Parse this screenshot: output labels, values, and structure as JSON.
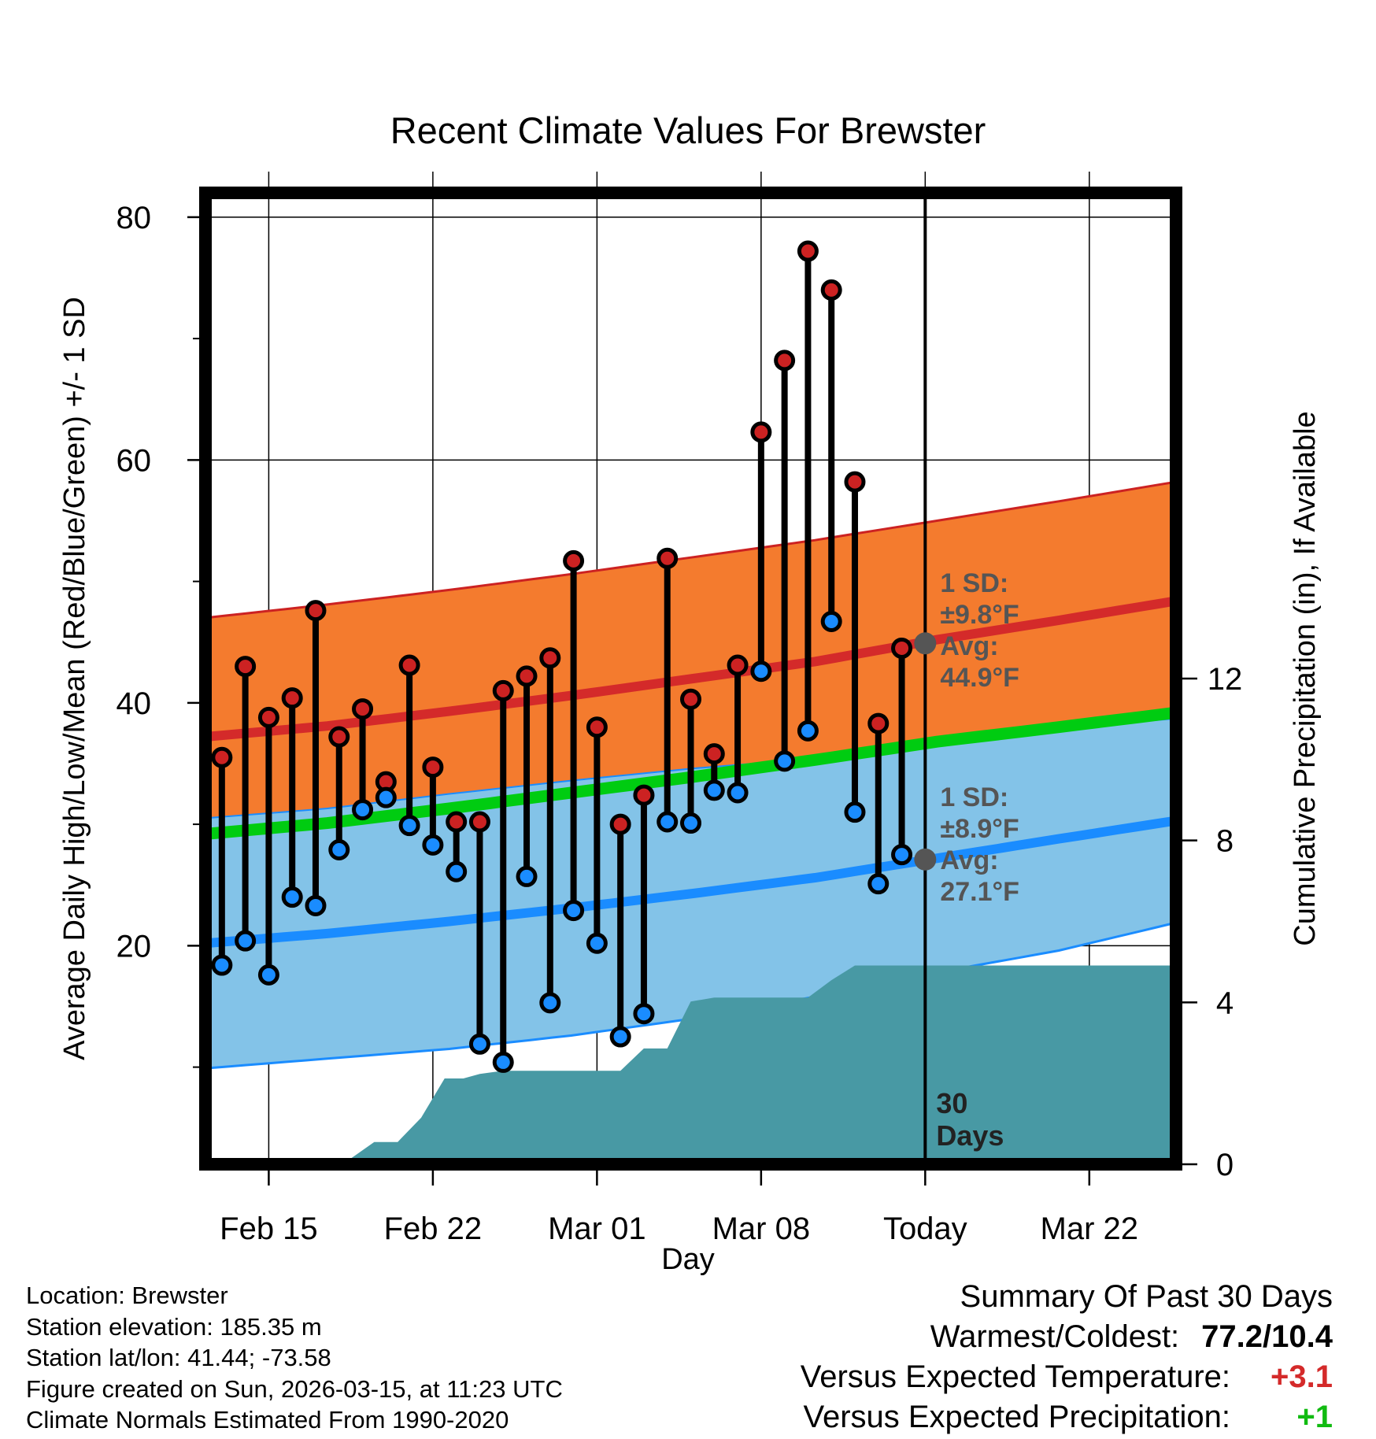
{
  "colors": {
    "high_band": "#f47b2e",
    "high_band_edge": "#cc2222",
    "high_avg": "#d42a2a",
    "low_band": "#83c3e8",
    "low_band_edge": "#1a8cff",
    "low_avg": "#1a8cff",
    "mean_line": "#00cc11",
    "precip": "#4899a4",
    "high_marker": "#cc2222",
    "low_marker": "#1a8cff",
    "avg_marker": "#555555",
    "plus_red": "#d42a2a",
    "plus_green": "#11bb11"
  },
  "chart_data": {
    "type": "line",
    "title": "Recent Climate Values For Brewster",
    "xlabel": "Day",
    "ylabel": "Average Daily High/Low/Mean (Red/Blue/Green) +/- 1 SD",
    "ylabel_right": "Cumulative Precipitation (in), If Available",
    "xlim": [
      -0.7,
      40.7
    ],
    "ylim": [
      2,
      82
    ],
    "ylim_right": [
      0,
      24
    ],
    "x_ticks": [
      {
        "x": 2,
        "label": "Feb 15"
      },
      {
        "x": 9,
        "label": "Feb 22"
      },
      {
        "x": 16,
        "label": "Mar 01"
      },
      {
        "x": 23,
        "label": "Mar 08"
      },
      {
        "x": 30,
        "label": "Today"
      },
      {
        "x": 37,
        "label": "Mar 22"
      }
    ],
    "y_ticks": [
      20,
      40,
      60,
      80
    ],
    "y_ticks_right": [
      0,
      4,
      8,
      12
    ],
    "grid": true,
    "today_x": 30,
    "days_label": [
      "30",
      "Days"
    ],
    "daily": [
      {
        "x": 0,
        "high": 35.5,
        "low": 18.4
      },
      {
        "x": 1,
        "high": 43.0,
        "low": 20.4
      },
      {
        "x": 2,
        "high": 38.8,
        "low": 17.6
      },
      {
        "x": 3,
        "high": 40.4,
        "low": 24.0
      },
      {
        "x": 4,
        "high": 47.6,
        "low": 23.3
      },
      {
        "x": 5,
        "high": 37.2,
        "low": 27.9
      },
      {
        "x": 6,
        "high": 39.5,
        "low": 31.2
      },
      {
        "x": 7,
        "high": 33.5,
        "low": 32.2
      },
      {
        "x": 8,
        "high": 43.1,
        "low": 29.9
      },
      {
        "x": 9,
        "high": 34.7,
        "low": 28.3
      },
      {
        "x": 10,
        "high": 30.2,
        "low": 26.1
      },
      {
        "x": 11,
        "high": 30.2,
        "low": 11.9
      },
      {
        "x": 12,
        "high": 41.0,
        "low": 10.4
      },
      {
        "x": 13,
        "high": 42.2,
        "low": 25.7
      },
      {
        "x": 14,
        "high": 43.7,
        "low": 15.3
      },
      {
        "x": 15,
        "high": 51.7,
        "low": 22.9
      },
      {
        "x": 16,
        "high": 38.0,
        "low": 20.2
      },
      {
        "x": 17,
        "high": 30.0,
        "low": 12.5
      },
      {
        "x": 18,
        "high": 32.4,
        "low": 14.4
      },
      {
        "x": 19,
        "high": 51.9,
        "low": 30.2
      },
      {
        "x": 20,
        "high": 40.3,
        "low": 30.1
      },
      {
        "x": 21,
        "high": 35.8,
        "low": 32.8
      },
      {
        "x": 22,
        "high": 43.1,
        "low": 32.6
      },
      {
        "x": 23,
        "high": 62.3,
        "low": 42.6
      },
      {
        "x": 24,
        "high": 68.2,
        "low": 35.2
      },
      {
        "x": 25,
        "high": 77.2,
        "low": 37.7
      },
      {
        "x": 26,
        "high": 74.0,
        "low": 46.7
      },
      {
        "x": 27,
        "high": 58.2,
        "low": 31.0
      },
      {
        "x": 28,
        "high": 38.3,
        "low": 25.1
      },
      {
        "x": 29,
        "high": 44.5,
        "low": 27.5
      }
    ],
    "normals": {
      "x": [
        -0.7,
        4.5,
        9.7,
        14.9,
        20.1,
        25.3,
        30.5,
        35.7,
        40.7
      ],
      "high_mean": [
        37.2,
        38.1,
        39.3,
        40.6,
        42.0,
        43.4,
        45.2,
        46.8,
        48.4
      ],
      "high_upper": [
        47.0,
        48.1,
        49.3,
        50.6,
        52.0,
        53.4,
        55.0,
        56.6,
        58.2
      ],
      "mean_line": [
        29.2,
        30.1,
        31.3,
        32.6,
        33.9,
        35.3,
        36.8,
        38.0,
        39.2
      ],
      "low_mean": [
        20.2,
        21.0,
        22.0,
        23.1,
        24.3,
        25.6,
        27.2,
        28.8,
        30.3
      ],
      "low_lower": [
        9.9,
        10.7,
        11.5,
        12.6,
        14.0,
        15.8,
        17.8,
        19.6,
        21.9
      ]
    },
    "precip_cumulative": {
      "x": [
        -0.7,
        4.5,
        5.3,
        6.5,
        7.5,
        8.5,
        9.5,
        10.3,
        11.0,
        12.0,
        13.0,
        15.0,
        17.0,
        18.0,
        19.0,
        20.0,
        21.0,
        22.0,
        23.0,
        24.0,
        25.0,
        26.0,
        27.0,
        28.0,
        29.0,
        30.0,
        40.7
      ],
      "y": [
        0,
        0,
        0.06,
        0.55,
        0.55,
        1.15,
        2.12,
        2.12,
        2.23,
        2.31,
        2.31,
        2.31,
        2.31,
        2.86,
        2.86,
        4.02,
        4.12,
        4.12,
        4.12,
        4.12,
        4.12,
        4.55,
        4.91,
        4.91,
        4.91,
        4.91,
        4.91
      ]
    },
    "annotations": {
      "high": {
        "x": 30,
        "y": 44.9,
        "lines": [
          "1 SD:",
          "±9.8°F",
          "Avg:",
          "44.9°F"
        ]
      },
      "low": {
        "x": 30,
        "y": 27.1,
        "lines": [
          "1 SD:",
          "±8.9°F",
          "Avg:",
          "27.1°F"
        ]
      }
    }
  },
  "info": {
    "location": "Location: Brewster",
    "elevation": "Station elevation: 185.35 m",
    "latlon": "Station lat/lon: 41.44; -73.58",
    "created": "Figure created on Sun, 2026-03-15, at 11:23 UTC",
    "normals": "Climate Normals Estimated From 1990-2020"
  },
  "summary": {
    "heading": "Summary Of Past 30 Days",
    "warmest_label": "Warmest/Coldest:",
    "warmest_value": "77.2/10.4",
    "temp_label": "Versus Expected Temperature:",
    "temp_value": "+3.1",
    "precip_label": "Versus Expected Precipitation:",
    "precip_value": "+1"
  }
}
